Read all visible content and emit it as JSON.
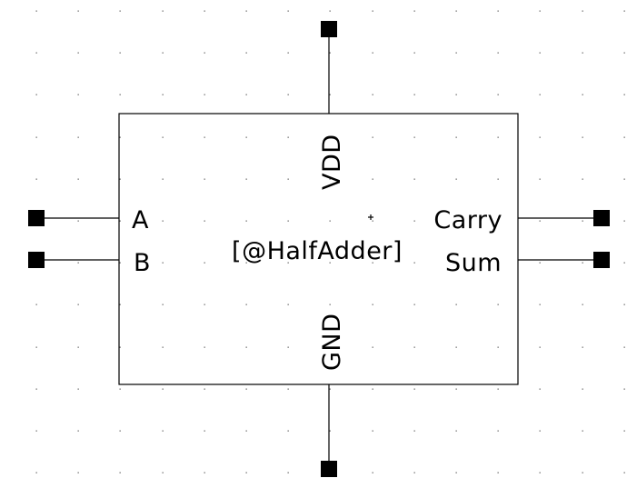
{
  "symbol": {
    "instance_label": "[@HalfAdder]",
    "pins": {
      "a": "A",
      "b": "B",
      "carry": "Carry",
      "sum": "Sum",
      "vdd": "VDD",
      "gnd": "GND"
    }
  },
  "colors": {
    "background": "#ffffff",
    "lines": "#000000",
    "grid": "#6a6a6a"
  }
}
